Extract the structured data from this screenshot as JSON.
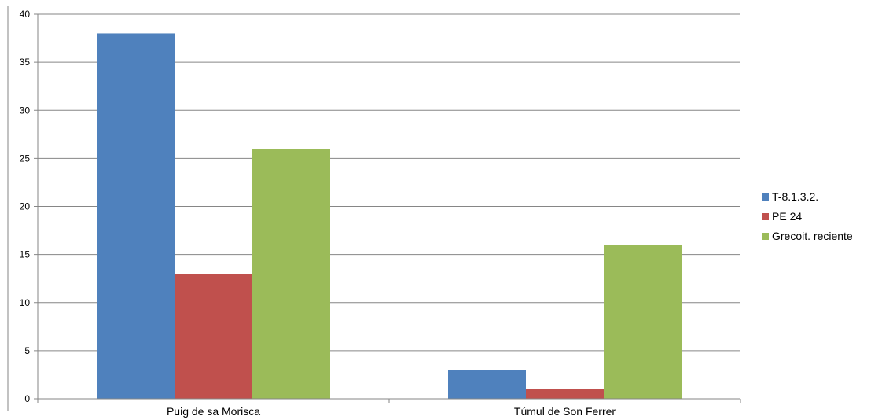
{
  "chart_data": {
    "type": "bar",
    "title": "",
    "xlabel": "",
    "ylabel": "",
    "categories": [
      "Puig de sa Morisca",
      "Túmul de Son Ferrer"
    ],
    "series": [
      {
        "name": "T-8.1.3.2.",
        "color": "#4F81BD",
        "values": [
          38,
          3
        ]
      },
      {
        "name": "PE 24",
        "color": "#C0504D",
        "values": [
          13,
          1
        ]
      },
      {
        "name": "Grecoit. reciente",
        "color": "#9BBB59",
        "values": [
          26,
          16
        ]
      }
    ],
    "ylim": [
      0,
      40
    ],
    "yticks": [
      "0",
      "5",
      "10",
      "15",
      "20",
      "25",
      "30",
      "35",
      "40"
    ],
    "grid": true,
    "legend_position": "right"
  }
}
